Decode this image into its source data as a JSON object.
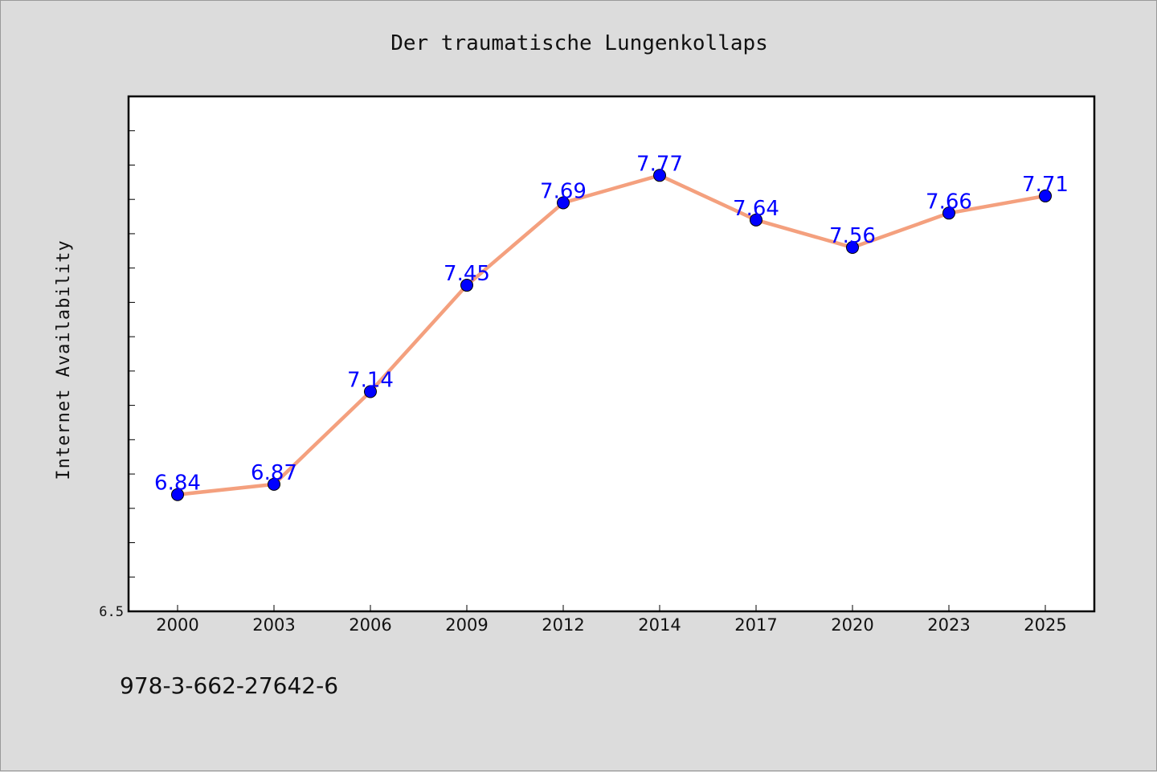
{
  "chart_data": {
    "type": "line",
    "title": "Der traumatische Lungenkollaps",
    "xlabel": "",
    "ylabel": "Internet Availability",
    "categories": [
      "2000",
      "2003",
      "2006",
      "2009",
      "2012",
      "2014",
      "2017",
      "2020",
      "2023",
      "2025"
    ],
    "series": [
      {
        "values": [
          6.84,
          6.87,
          7.14,
          7.45,
          7.69,
          7.77,
          7.64,
          7.56,
          7.66,
          7.71
        ],
        "labels": [
          "6.84",
          "6.87",
          "7.14",
          "7.45",
          "7.69",
          "7.77",
          "7.64",
          "7.56",
          "7.66",
          "7.71"
        ],
        "line_color": "#f4a07e",
        "marker_color": "#0000ff"
      }
    ],
    "ylim": [
      6.5,
      8.0
    ],
    "ytick_labels": [
      {
        "value": 6.5,
        "label": "6.5"
      }
    ],
    "grid": false,
    "legend": "none"
  },
  "footer": {
    "isbn": "978-3-662-27642-6"
  }
}
